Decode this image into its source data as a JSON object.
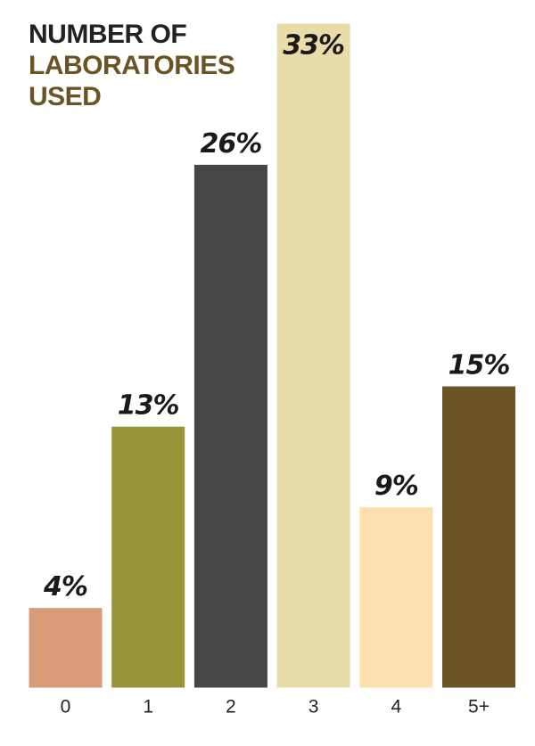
{
  "chart_data": {
    "type": "bar",
    "title_lines": [
      "NUMBER OF",
      "LABORATORIES",
      "USED"
    ],
    "title_colors": [
      "#222222",
      "#6b5424",
      "#6b5424"
    ],
    "categories": [
      "0",
      "1",
      "2",
      "3",
      "4",
      "5+"
    ],
    "values": [
      4,
      13,
      26,
      33,
      9,
      15
    ],
    "value_labels": [
      "4%",
      "13%",
      "26%",
      "33%",
      "9%",
      "15%"
    ],
    "colors": [
      "#d89c78",
      "#9a9438",
      "#464646",
      "#e8dca8",
      "#fde0ae",
      "#6b5424"
    ]
  }
}
